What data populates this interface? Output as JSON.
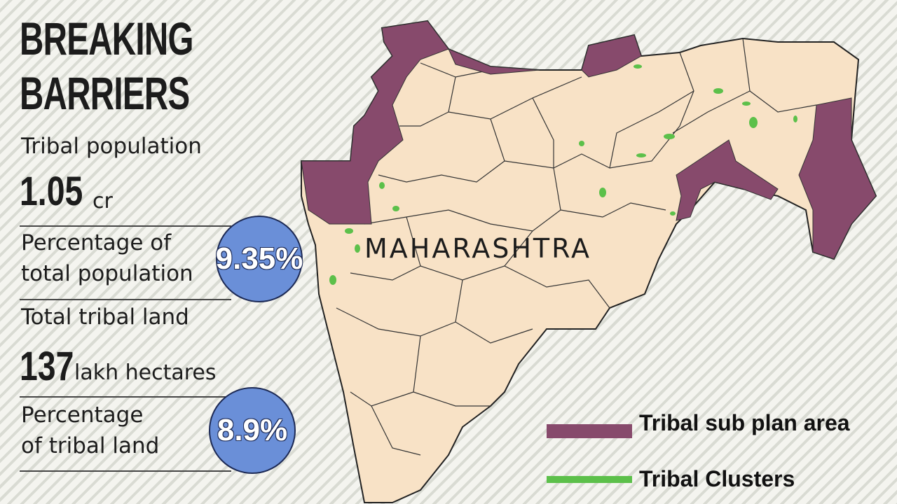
{
  "header": {
    "title": [
      "BREAKING",
      "BARRIERS"
    ]
  },
  "stats": [
    {
      "label": [
        "Tribal population"
      ],
      "value": "1.05",
      "unit": "cr"
    },
    {
      "label": [
        "Percentage of",
        "total population"
      ],
      "badge": "9.35%"
    },
    {
      "label": [
        "Total tribal land"
      ],
      "value": "137",
      "unit": "lakh hectares"
    },
    {
      "label": [
        "Percentage",
        "of tribal land"
      ],
      "badge": "8.9%"
    }
  ],
  "map": {
    "label": "MAHARASHTRA"
  },
  "legend": [
    {
      "label": "Tribal sub plan area",
      "color": "#874a6c"
    },
    {
      "label": "Tribal Clusters",
      "color": "#5cc04a"
    }
  ]
}
